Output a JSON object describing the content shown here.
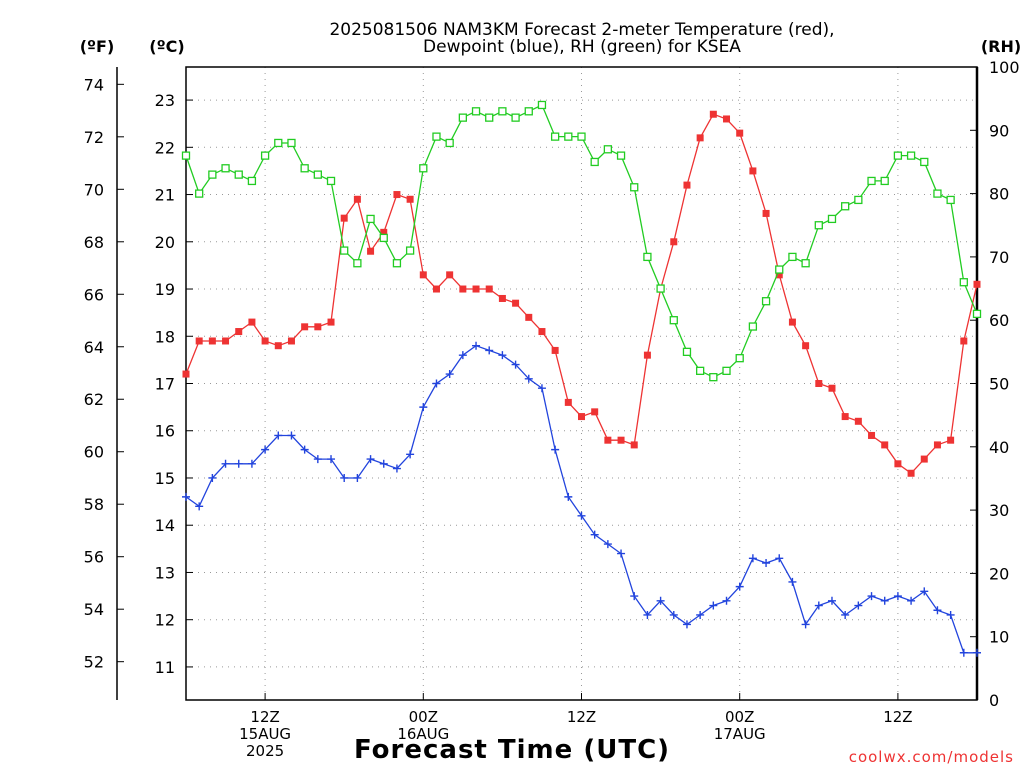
{
  "chart_data": {
    "type": "line",
    "title_lines": [
      "2025081506 NAM3KM Forecast 2-meter Temperature (red),",
      "Dewpoint (blue), RH (green) for KSEA"
    ],
    "xlabel": "Forecast Time (UTC)",
    "credit": "coolwx.com/models",
    "x_range": [
      0,
      60
    ],
    "x_ticks": [
      {
        "x": 6,
        "lines": [
          "12Z",
          "15AUG",
          "2025"
        ]
      },
      {
        "x": 18,
        "lines": [
          "00Z",
          "16AUG"
        ]
      },
      {
        "x": 30,
        "lines": [
          "12Z"
        ]
      },
      {
        "x": 42,
        "lines": [
          "00Z",
          "17AUG"
        ]
      },
      {
        "x": 54,
        "lines": [
          "12Z"
        ]
      }
    ],
    "axes": {
      "celsius": {
        "label": "(ºC)",
        "range": [
          10.3,
          23.7
        ],
        "ticks": [
          11,
          12,
          13,
          14,
          15,
          16,
          17,
          18,
          19,
          20,
          21,
          22,
          23
        ]
      },
      "fahrenheit": {
        "label": "(ºF)",
        "range": [
          50.54,
          74.66
        ],
        "ticks": [
          52,
          54,
          56,
          58,
          60,
          62,
          64,
          66,
          68,
          70,
          72,
          74
        ]
      },
      "rh": {
        "label": "(RH)",
        "range": [
          0,
          100
        ],
        "ticks": [
          0,
          10,
          20,
          30,
          40,
          50,
          60,
          70,
          80,
          90,
          100
        ]
      }
    },
    "grid": true,
    "series": [
      {
        "name": "Temperature",
        "axis": "celsius",
        "color": "#ee3333",
        "marker": "filled-square",
        "values": [
          17.2,
          17.9,
          17.9,
          17.9,
          18.1,
          18.3,
          17.9,
          17.8,
          17.9,
          18.2,
          18.2,
          18.3,
          20.5,
          20.9,
          19.8,
          20.2,
          21.0,
          20.9,
          19.3,
          19.0,
          19.3,
          19.0,
          19.0,
          19.0,
          18.8,
          18.7,
          18.4,
          18.1,
          17.7,
          16.6,
          16.3,
          16.4,
          15.8,
          15.8,
          15.7,
          17.6,
          19.0,
          20.0,
          21.2,
          22.2,
          22.7,
          22.6,
          22.3,
          21.5,
          20.6,
          19.3,
          18.3,
          17.8,
          17.0,
          16.9,
          16.3,
          16.2,
          15.9,
          15.7,
          15.3,
          15.1,
          15.4,
          15.7,
          15.8,
          17.9,
          19.1
        ]
      },
      {
        "name": "Dewpoint",
        "axis": "celsius",
        "color": "#2244dd",
        "marker": "plus",
        "values": [
          14.6,
          14.4,
          15.0,
          15.3,
          15.3,
          15.3,
          15.6,
          15.9,
          15.9,
          15.6,
          15.4,
          15.4,
          15.0,
          15.0,
          15.4,
          15.3,
          15.2,
          15.5,
          16.5,
          17.0,
          17.2,
          17.6,
          17.8,
          17.7,
          17.6,
          17.4,
          17.1,
          16.9,
          15.6,
          14.6,
          14.2,
          13.8,
          13.6,
          13.4,
          12.5,
          12.1,
          12.4,
          12.1,
          11.9,
          12.1,
          12.3,
          12.4,
          12.7,
          13.3,
          13.2,
          13.3,
          12.8,
          11.9,
          12.3,
          12.4,
          12.1,
          12.3,
          12.5,
          12.4,
          12.5,
          12.4,
          12.6,
          12.2,
          12.1,
          11.3,
          11.3
        ]
      },
      {
        "name": "RH",
        "axis": "rh",
        "color": "#22cc22",
        "marker": "open-square",
        "values": [
          86,
          80,
          83,
          84,
          83,
          82,
          86,
          88,
          88,
          84,
          83,
          82,
          71,
          69,
          76,
          73,
          69,
          71,
          84,
          89,
          88,
          92,
          93,
          92,
          93,
          92,
          93,
          94,
          89,
          89,
          89,
          85,
          87,
          86,
          81,
          70,
          65,
          60,
          55,
          52,
          51,
          52,
          54,
          59,
          63,
          68,
          70,
          69,
          75,
          76,
          78,
          79,
          82,
          82,
          86,
          86,
          85,
          80,
          79,
          66,
          61
        ]
      }
    ]
  }
}
